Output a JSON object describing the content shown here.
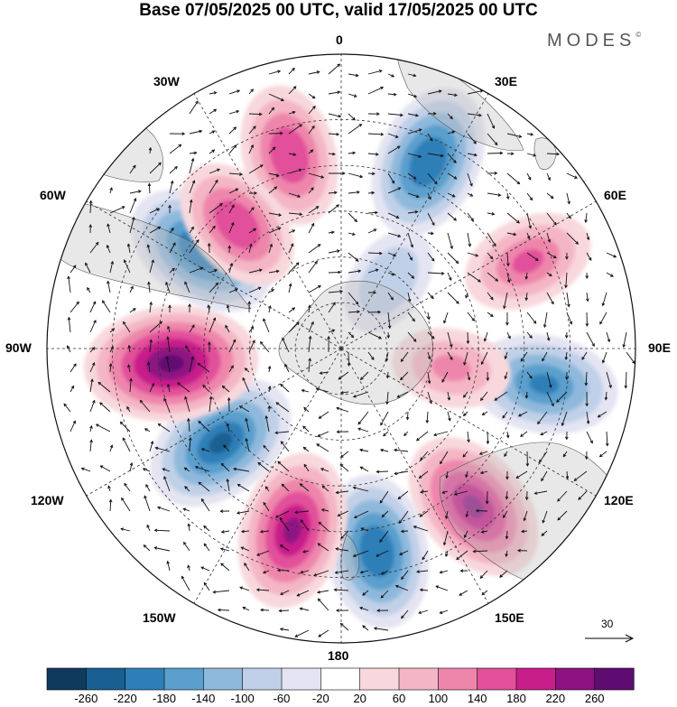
{
  "title": "Base 07/05/2025 00 UTC, valid 17/05/2025 00 UTC",
  "brand": "MODES",
  "brand_mark": "©",
  "longitude_labels": {
    "lon_0": "0",
    "lon_30e": "30E",
    "lon_60e": "60E",
    "lon_90e": "90E",
    "lon_120e": "120E",
    "lon_150e": "150E",
    "lon_180": "180",
    "lon_150w": "150W",
    "lon_120w": "120W",
    "lon_90w": "90W",
    "lon_60w": "60W",
    "lon_30w": "30W"
  },
  "reference_vector": {
    "label": "30"
  },
  "colorbar": {
    "ticks": [
      "-260",
      "-220",
      "-180",
      "-140",
      "-100",
      "-60",
      "-20",
      "20",
      "60",
      "100",
      "140",
      "180",
      "220",
      "260"
    ],
    "colors": [
      "#0f3a5e",
      "#1a5f91",
      "#2e7fb8",
      "#5a9fcd",
      "#8fb9dc",
      "#c0d0e8",
      "#e4e4f2",
      "#ffffff",
      "#f8d8dc",
      "#f4b6c4",
      "#ee86ac",
      "#e2509a",
      "#c81e8a",
      "#8e1282",
      "#5e0c72"
    ]
  },
  "anomalies": [
    {
      "lon": -15,
      "r": 0.68,
      "value": 150
    },
    {
      "lon": 25,
      "r": 0.7,
      "value": -190
    },
    {
      "lon": 65,
      "r": 0.7,
      "value": 120
    },
    {
      "lon": 100,
      "r": 0.7,
      "value": -170
    },
    {
      "lon": 140,
      "r": 0.7,
      "value": 200
    },
    {
      "lon": 170,
      "r": 0.7,
      "value": -190
    },
    {
      "lon": -165,
      "r": 0.64,
      "value": 200
    },
    {
      "lon": -128,
      "r": 0.52,
      "value": -200
    },
    {
      "lon": -95,
      "r": 0.58,
      "value": 250
    },
    {
      "lon": -55,
      "r": 0.58,
      "value": -190
    },
    {
      "lon": -40,
      "r": 0.55,
      "value": 140
    },
    {
      "lon": 100,
      "r": 0.38,
      "value": 80
    },
    {
      "lon": 35,
      "r": 0.28,
      "value": -60
    }
  ]
}
